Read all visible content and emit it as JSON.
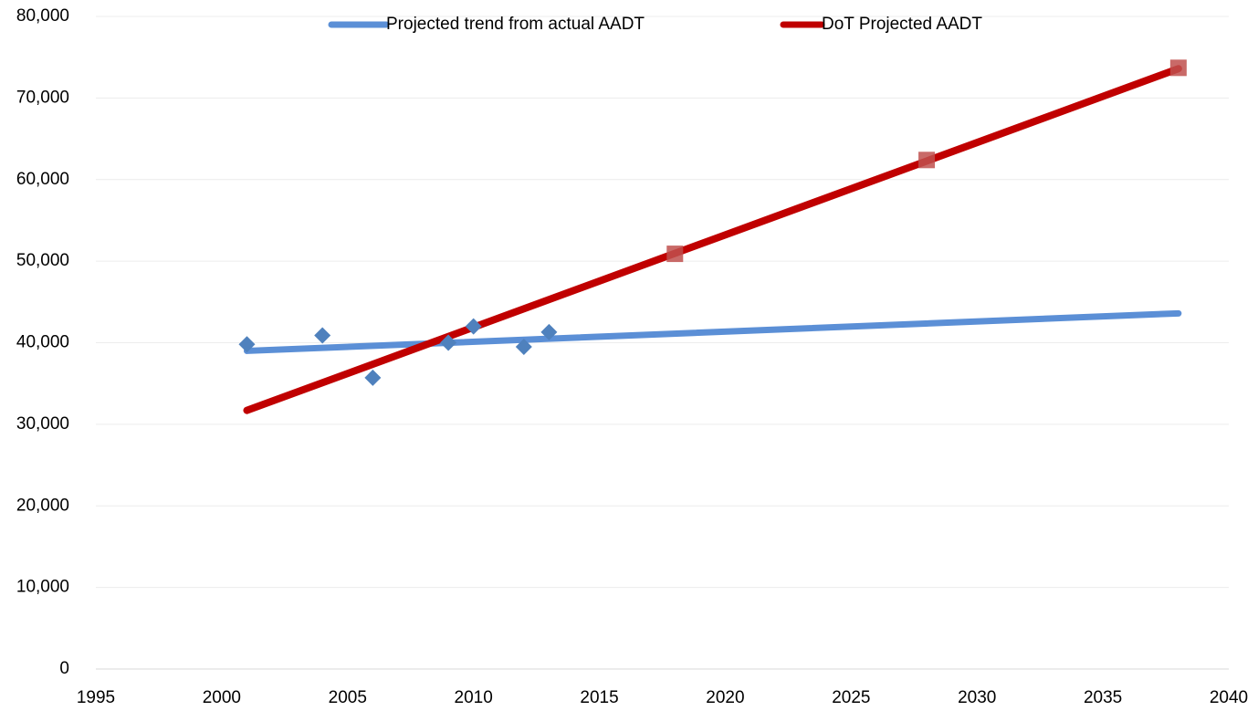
{
  "chart_data": {
    "type": "line",
    "series": [
      {
        "name": "Projected trend from actual AADT",
        "color": "#5b8fd6",
        "x": [
          2001,
          2038
        ],
        "values": [
          39000,
          43600
        ]
      },
      {
        "name": "DoT Projected AADT",
        "color": "#c00000",
        "x": [
          2001,
          2038
        ],
        "values": [
          31700,
          73600
        ]
      }
    ],
    "markers": [
      {
        "marker": "diamond",
        "color": "#4f81bd",
        "x": [
          2001,
          2004,
          2006,
          2009,
          2010,
          2012,
          2013
        ],
        "values": [
          39800,
          40900,
          35700,
          40000,
          42000,
          39500,
          41300
        ]
      },
      {
        "marker": "square",
        "color": "#c0504d",
        "x": [
          2018,
          2028,
          2038
        ],
        "values": [
          50900,
          62400,
          73700
        ]
      }
    ],
    "xlim": [
      1995,
      2040
    ],
    "xticks": [
      1995,
      2000,
      2005,
      2010,
      2015,
      2020,
      2025,
      2030,
      2035,
      2040
    ],
    "ylim": [
      0,
      80000
    ],
    "yticks": [
      0,
      {
        "value": 10000,
        "label": "10,000"
      },
      {
        "value": 20000,
        "label": "20,000"
      },
      {
        "value": 30000,
        "label": "30,000"
      },
      {
        "value": 40000,
        "label": "40,000"
      },
      {
        "value": 50000,
        "label": "50,000"
      },
      {
        "value": 60000,
        "label": "60,000"
      },
      {
        "value": 70000,
        "label": "70,000"
      },
      {
        "value": 80000,
        "label": "80,000"
      }
    ],
    "grid": true,
    "legend": "top"
  }
}
